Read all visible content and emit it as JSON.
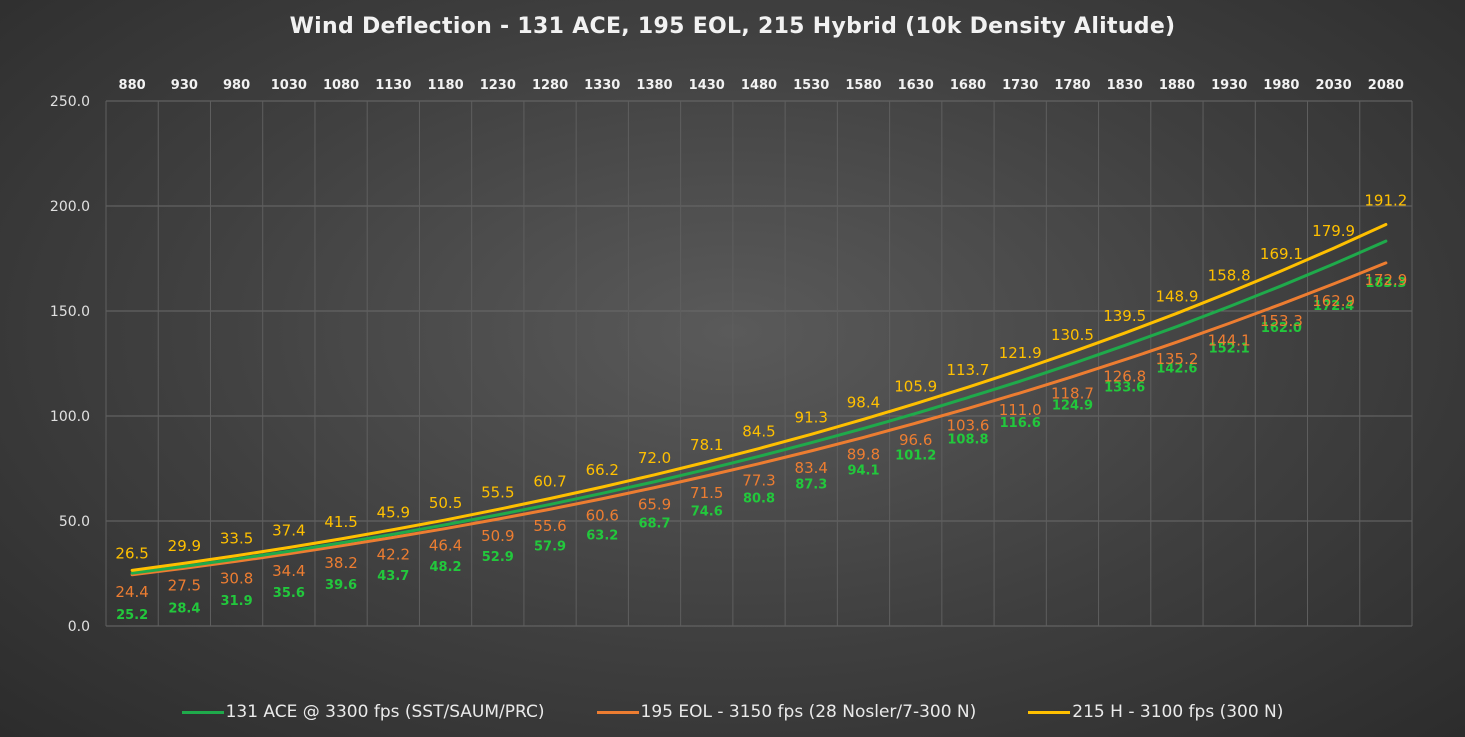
{
  "chart_data": {
    "type": "line",
    "title": "Wind Deflection - 131 ACE, 195 EOL, 215 Hybrid (10k Density Alitude)",
    "x": [
      880,
      930,
      980,
      1030,
      1080,
      1130,
      1180,
      1230,
      1280,
      1330,
      1380,
      1430,
      1480,
      1530,
      1580,
      1630,
      1680,
      1730,
      1780,
      1830,
      1880,
      1930,
      1980,
      2030,
      2080
    ],
    "xaxis_position": "top",
    "ylim": [
      0,
      250
    ],
    "yticks": [
      "0.0",
      "50.0",
      "100.0",
      "150.0",
      "200.0",
      "250.0"
    ],
    "grid": true,
    "legend_position": "bottom",
    "series": [
      {
        "name": "131 ACE @ 3300 fps (SST/SAUM/PRC)",
        "color": "#1faa4b",
        "label_color": "#22c83c",
        "values": [
          25.2,
          28.4,
          31.9,
          35.6,
          39.6,
          43.7,
          48.2,
          52.9,
          57.9,
          63.2,
          68.7,
          74.6,
          80.8,
          87.3,
          94.1,
          101.2,
          108.8,
          116.6,
          124.9,
          133.6,
          142.6,
          152.1,
          162.0,
          172.4,
          183.3
        ]
      },
      {
        "name": "195 EOL - 3150 fps (28 Nosler/7-300 N)",
        "color": "#ed7d31",
        "label_color": "#ed7d31",
        "values": [
          24.4,
          27.5,
          30.8,
          34.4,
          38.2,
          42.2,
          46.4,
          50.9,
          55.6,
          60.6,
          65.9,
          71.5,
          77.3,
          83.4,
          89.8,
          96.6,
          103.6,
          111.0,
          118.7,
          126.8,
          135.2,
          144.1,
          153.3,
          162.9,
          172.9
        ]
      },
      {
        "name": "215 H - 3100 fps (300 N)",
        "color": "#ffc000",
        "label_color": "#ffc000",
        "values": [
          26.5,
          29.9,
          33.5,
          37.4,
          41.5,
          45.9,
          50.5,
          55.5,
          60.7,
          66.2,
          72.0,
          78.1,
          84.5,
          91.3,
          98.4,
          105.9,
          113.7,
          121.9,
          130.5,
          139.5,
          148.9,
          158.8,
          169.1,
          179.9,
          191.2
        ]
      }
    ]
  }
}
